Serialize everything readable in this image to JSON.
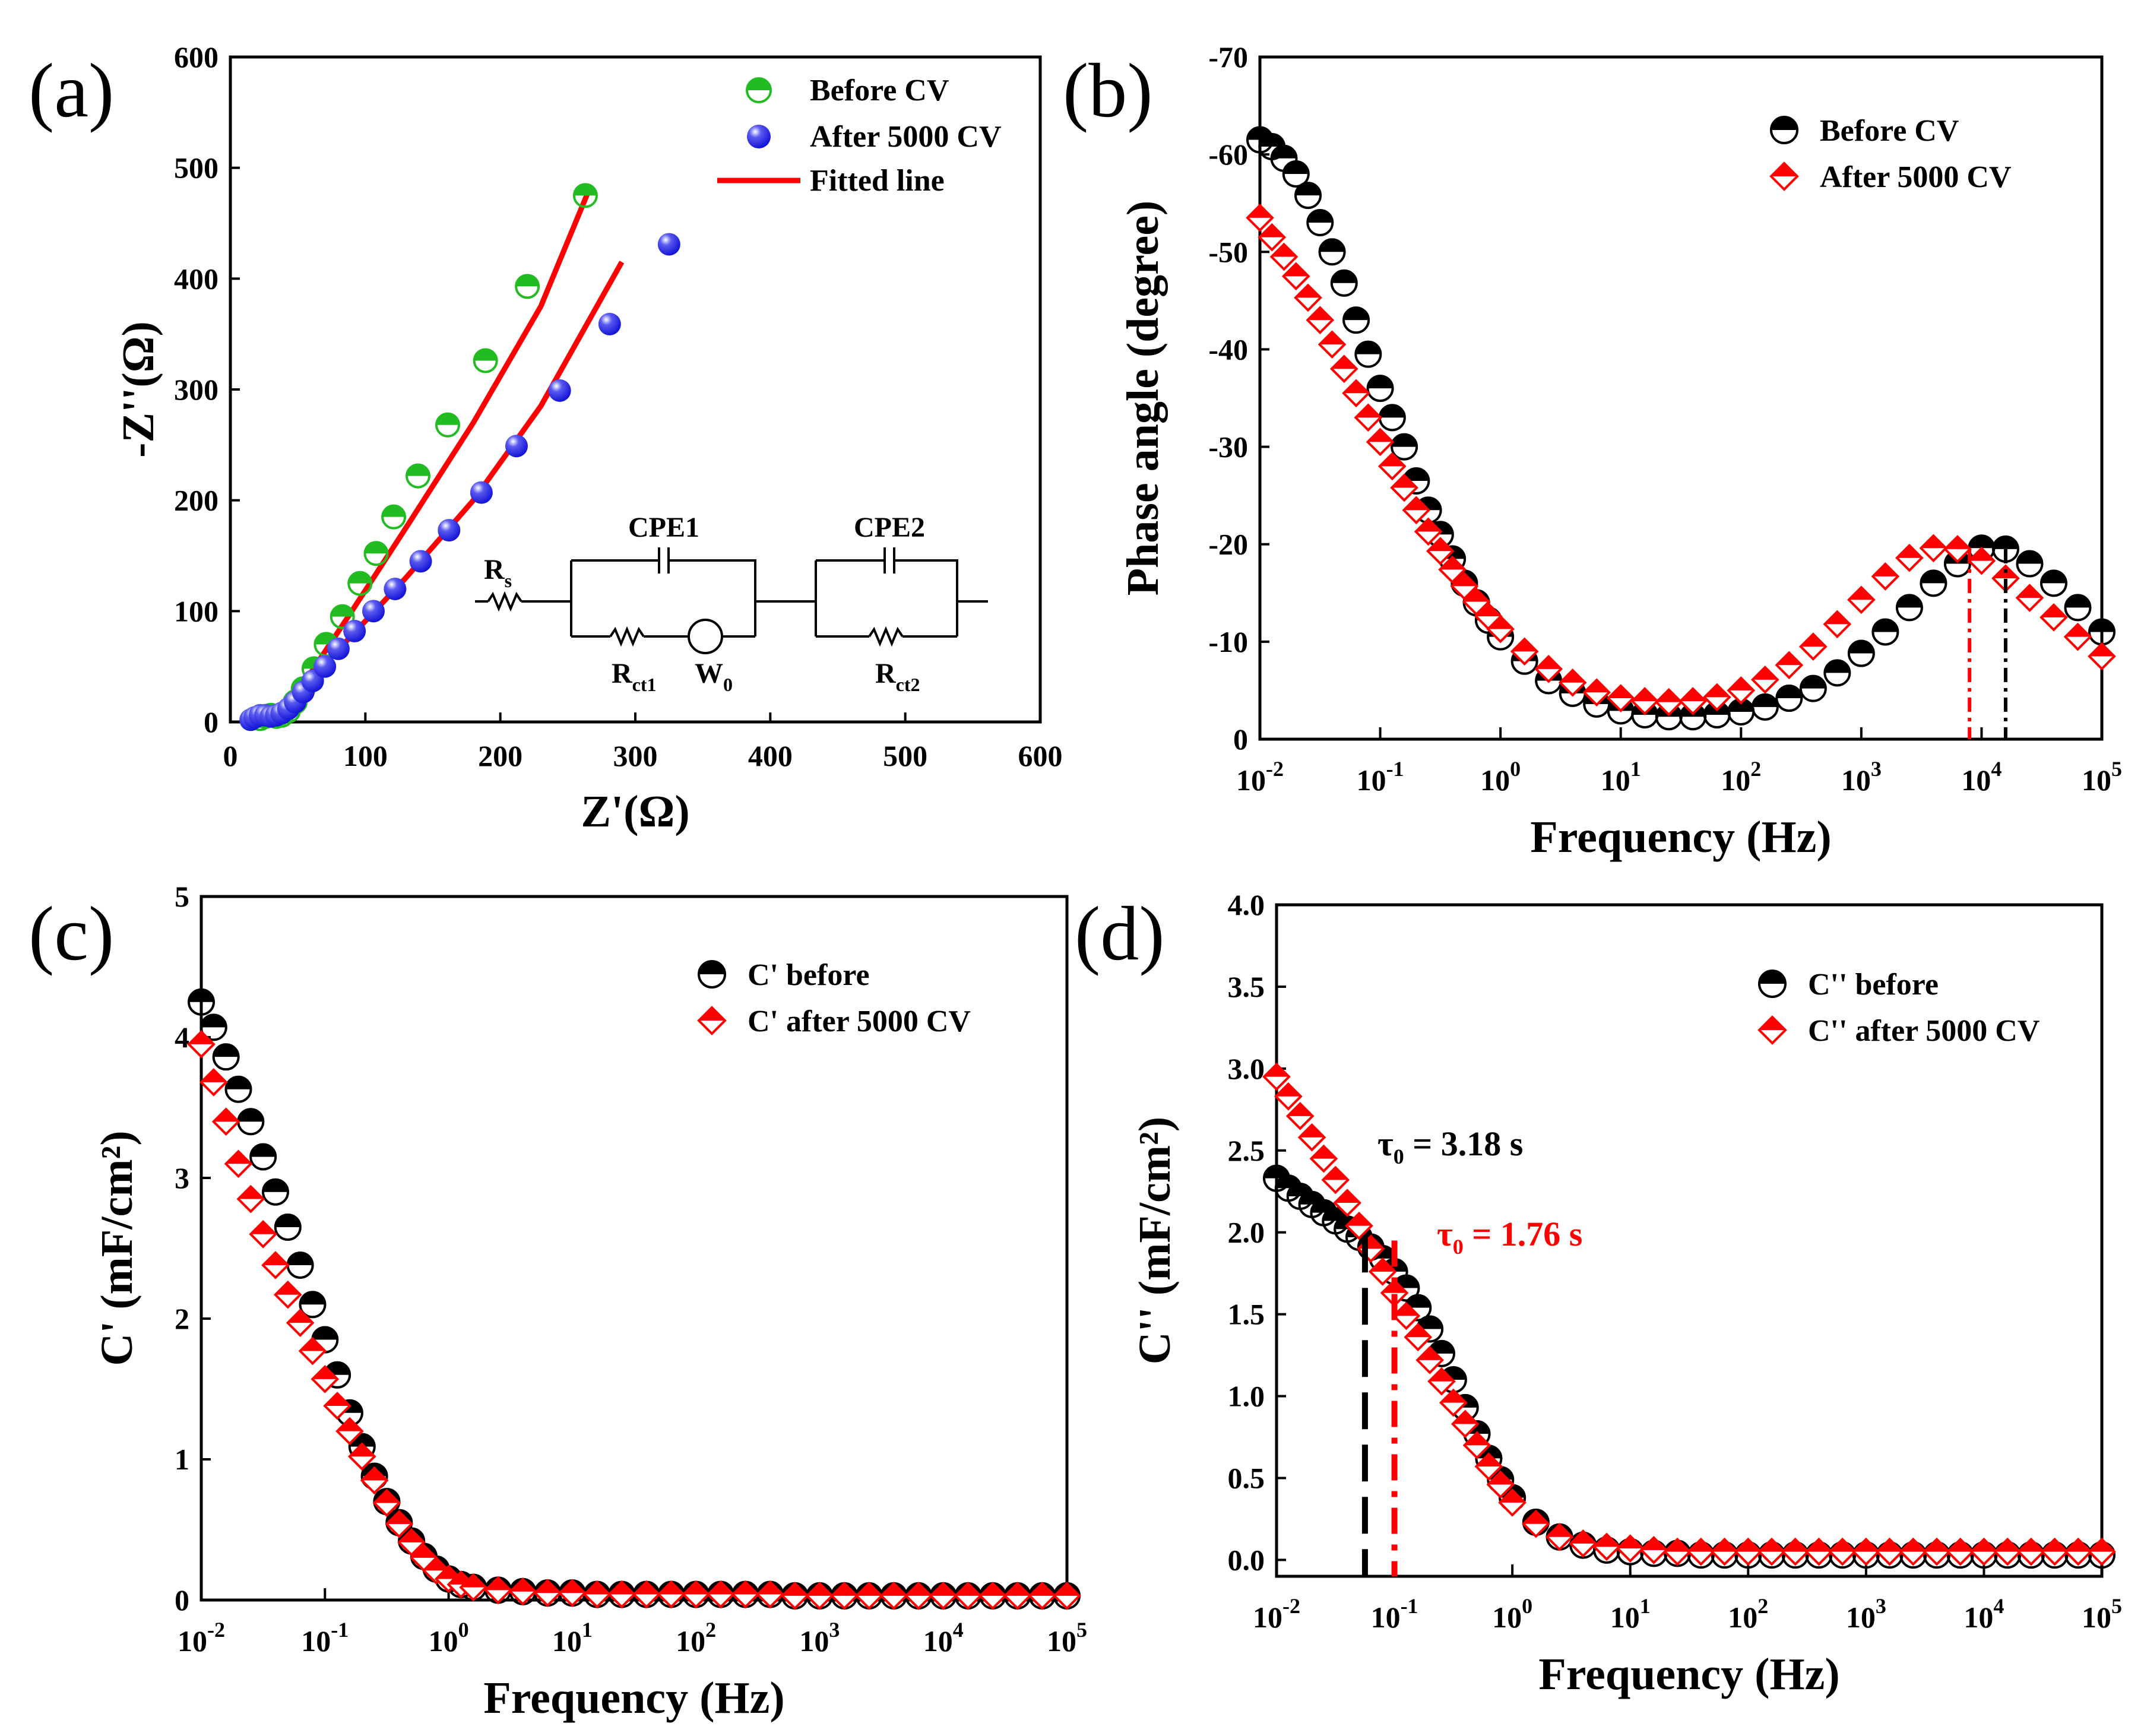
{
  "colors": {
    "green": "#22bb22",
    "blue": "#1515d8",
    "red": "#ff0000",
    "black": "#000000"
  },
  "chart_data": [
    {
      "id": "a",
      "panel_label": "(a)",
      "type": "scatter",
      "xlabel": "Z'(Ω)",
      "ylabel": "-Z''(Ω)",
      "xlim": [
        0,
        600
      ],
      "ylim": [
        0,
        600
      ],
      "xticks": [
        0,
        100,
        200,
        300,
        400,
        500,
        600
      ],
      "yticks": [
        0,
        100,
        200,
        300,
        400,
        500,
        600
      ],
      "series": [
        {
          "name": "Before CV",
          "marker": "half-circle",
          "color": "#22bb22",
          "x": [
            22,
            26,
            30,
            34,
            38,
            43,
            48,
            54,
            62,
            71,
            83,
            96,
            108,
            121,
            139,
            161,
            189,
            220,
            263
          ],
          "y": [
            3,
            5,
            6,
            5,
            6,
            10,
            18,
            30,
            48,
            70,
            95,
            125,
            152,
            185,
            222,
            268,
            326,
            393,
            475
          ]
        },
        {
          "name": "After 5000 CV",
          "marker": "sphere",
          "color": "#1515d8",
          "x": [
            15,
            18,
            22,
            26,
            30,
            34,
            38,
            43,
            48,
            54,
            61,
            70,
            80,
            92,
            106,
            122,
            141,
            162,
            186,
            212,
            244,
            281,
            325
          ],
          "y": [
            2,
            4,
            6,
            6,
            5,
            6,
            8,
            12,
            18,
            27,
            37,
            50,
            66,
            82,
            100,
            120,
            145,
            173,
            207,
            249,
            299,
            359,
            431
          ]
        },
        {
          "name": "Fitted line",
          "marker": "line",
          "color": "#ff0000",
          "x": [
            18,
            30,
            40,
            60,
            90,
            130,
            180,
            230,
            265
          ],
          "y": [
            3,
            3,
            12,
            45,
            100,
            175,
            270,
            375,
            478
          ]
        },
        {
          "name": "",
          "marker": "line",
          "color": "#ff0000",
          "x": [
            18,
            30,
            40,
            60,
            90,
            130,
            180,
            230,
            290
          ],
          "y": [
            2,
            2,
            12,
            40,
            78,
            130,
            200,
            285,
            415
          ]
        }
      ],
      "circuit": {
        "rs": "R",
        "rs_sub": "s",
        "cpe1": "CPE1",
        "cpe2": "CPE2",
        "rct1": "R",
        "rct1_sub": "ct1",
        "w": "W",
        "w_sub": "0",
        "rct2": "R",
        "rct2_sub": "ct2"
      }
    },
    {
      "id": "b",
      "panel_label": "(b)",
      "type": "scatter",
      "xlabel": "Frequency (Hz)",
      "ylabel": "Phase angle (degree)",
      "xscale": "log",
      "xlim_exp": [
        -2,
        5
      ],
      "ylim": [
        0,
        -70
      ],
      "yticks": [
        0,
        -10,
        -20,
        -30,
        -40,
        -50,
        -60,
        -70
      ],
      "series": [
        {
          "name": "Before CV",
          "marker": "half-circle",
          "color": "#000000",
          "logf": [
            -2,
            -1.9,
            -1.8,
            -1.7,
            -1.6,
            -1.5,
            -1.4,
            -1.3,
            -1.2,
            -1.1,
            -1,
            -0.9,
            -0.8,
            -0.7,
            -0.6,
            -0.5,
            -0.4,
            -0.3,
            -0.2,
            -0.1,
            0,
            0.2,
            0.4,
            0.6,
            0.8,
            1,
            1.2,
            1.4,
            1.6,
            1.8,
            2,
            2.2,
            2.4,
            2.6,
            2.8,
            3,
            3.2,
            3.4,
            3.6,
            3.8,
            4,
            4.2,
            4.4,
            4.6,
            4.8,
            5
          ],
          "y": [
            -61.5,
            -60.8,
            -59.6,
            -58,
            -55.8,
            -53,
            -50,
            -46.8,
            -43,
            -39.5,
            -36,
            -33,
            -30,
            -26.5,
            -23.5,
            -21,
            -18.5,
            -16,
            -14,
            -12.2,
            -10.5,
            -8,
            -6,
            -4.7,
            -3.6,
            -2.9,
            -2.5,
            -2.3,
            -2.3,
            -2.5,
            -2.8,
            -3.3,
            -4.2,
            -5.2,
            -6.8,
            -8.8,
            -11,
            -13.5,
            -16,
            -18,
            -19.6,
            -19.5,
            -18,
            -16,
            -13.5,
            -11
          ]
        },
        {
          "name": "After 5000 CV",
          "marker": "diamond",
          "color": "#ff0000",
          "logf": [
            -2,
            -1.9,
            -1.8,
            -1.7,
            -1.6,
            -1.5,
            -1.4,
            -1.3,
            -1.2,
            -1.1,
            -1,
            -0.9,
            -0.8,
            -0.7,
            -0.6,
            -0.5,
            -0.4,
            -0.3,
            -0.2,
            -0.1,
            0,
            0.2,
            0.4,
            0.6,
            0.8,
            1,
            1.2,
            1.4,
            1.6,
            1.8,
            2,
            2.2,
            2.4,
            2.6,
            2.8,
            3,
            3.2,
            3.4,
            3.6,
            3.8,
            4,
            4.2,
            4.4,
            4.6,
            4.8,
            5
          ],
          "y": [
            -53.5,
            -51.5,
            -49.5,
            -47.5,
            -45.3,
            -43,
            -40.5,
            -38,
            -35.5,
            -33,
            -30.5,
            -28,
            -25.8,
            -23.5,
            -21.3,
            -19.3,
            -17.4,
            -15.7,
            -14.1,
            -12.6,
            -11.3,
            -9,
            -7.2,
            -5.8,
            -4.8,
            -4.2,
            -3.9,
            -3.8,
            -3.9,
            -4.3,
            -5,
            -6.1,
            -7.6,
            -9.5,
            -11.8,
            -14.3,
            -16.7,
            -18.6,
            -19.6,
            -19.5,
            -18.3,
            -16.5,
            -14.5,
            -12.5,
            -10.5,
            -8.5
          ]
        }
      ],
      "peak_lines": [
        {
          "color": "#ff0000",
          "logf": 3.9,
          "y_top": -19.5
        },
        {
          "color": "#000000",
          "logf": 4.2,
          "y_top": -19.5
        }
      ]
    },
    {
      "id": "c",
      "panel_label": "(c)",
      "type": "scatter",
      "xlabel": "Frequency (Hz)",
      "ylabel": "C' (mF/cm²)",
      "xscale": "log",
      "xlim_exp": [
        -2,
        5
      ],
      "ylim": [
        0,
        5
      ],
      "yticks": [
        0,
        1,
        2,
        3,
        4,
        5
      ],
      "series": [
        {
          "name": "C' before",
          "marker": "half-circle",
          "color": "#000000",
          "logf": [
            -2,
            -1.9,
            -1.8,
            -1.7,
            -1.6,
            -1.5,
            -1.4,
            -1.3,
            -1.2,
            -1.1,
            -1,
            -0.9,
            -0.8,
            -0.7,
            -0.6,
            -0.5,
            -0.4,
            -0.3,
            -0.2,
            -0.1,
            0,
            0.1,
            0.2,
            0.4,
            0.6,
            0.8,
            1,
            1.2,
            1.4,
            1.6,
            1.8,
            2,
            2.2,
            2.4,
            2.6,
            2.8,
            3,
            3.2,
            3.4,
            3.6,
            3.8,
            4,
            4.2,
            4.4,
            4.6,
            4.8,
            5
          ],
          "y": [
            4.25,
            4.07,
            3.86,
            3.63,
            3.4,
            3.15,
            2.9,
            2.65,
            2.38,
            2.1,
            1.85,
            1.6,
            1.33,
            1.09,
            0.88,
            0.7,
            0.55,
            0.42,
            0.31,
            0.22,
            0.15,
            0.11,
            0.09,
            0.07,
            0.06,
            0.05,
            0.05,
            0.04,
            0.04,
            0.04,
            0.04,
            0.04,
            0.04,
            0.04,
            0.04,
            0.03,
            0.03,
            0.03,
            0.03,
            0.03,
            0.03,
            0.03,
            0.03,
            0.03,
            0.03,
            0.03,
            0.03
          ]
        },
        {
          "name": "C' after 5000 CV",
          "marker": "diamond",
          "color": "#ff0000",
          "logf": [
            -2,
            -1.9,
            -1.8,
            -1.7,
            -1.6,
            -1.5,
            -1.4,
            -1.3,
            -1.2,
            -1.1,
            -1,
            -0.9,
            -0.8,
            -0.7,
            -0.6,
            -0.5,
            -0.4,
            -0.3,
            -0.2,
            -0.1,
            0,
            0.1,
            0.2,
            0.4,
            0.6,
            0.8,
            1,
            1.2,
            1.4,
            1.6,
            1.8,
            2,
            2.2,
            2.4,
            2.6,
            2.8,
            3,
            3.2,
            3.4,
            3.6,
            3.8,
            4,
            4.2,
            4.4,
            4.6,
            4.8,
            5
          ],
          "y": [
            3.95,
            3.68,
            3.4,
            3.1,
            2.85,
            2.6,
            2.38,
            2.17,
            1.97,
            1.77,
            1.57,
            1.38,
            1.2,
            1.02,
            0.85,
            0.69,
            0.54,
            0.41,
            0.3,
            0.21,
            0.15,
            0.11,
            0.09,
            0.07,
            0.06,
            0.05,
            0.05,
            0.04,
            0.04,
            0.04,
            0.04,
            0.04,
            0.04,
            0.04,
            0.04,
            0.03,
            0.03,
            0.03,
            0.03,
            0.03,
            0.03,
            0.03,
            0.03,
            0.03,
            0.03,
            0.03,
            0.03
          ]
        }
      ]
    },
    {
      "id": "d",
      "panel_label": "(d)",
      "type": "scatter",
      "xlabel": "Frequency (Hz)",
      "ylabel": "C'' (mF/cm²)",
      "xscale": "log",
      "xlim_exp": [
        -2,
        5
      ],
      "ylim": [
        -0.1,
        4
      ],
      "yticks": [
        0,
        0.5,
        1,
        1.5,
        2,
        2.5,
        3,
        3.5,
        4
      ],
      "ytick_labels": [
        "0.0",
        "0.5",
        "1.0",
        "1.5",
        "2.0",
        "2.5",
        "3.0",
        "3.5",
        "4.0"
      ],
      "series": [
        {
          "name": "C'' before",
          "marker": "half-circle",
          "color": "#000000",
          "logf": [
            -2,
            -1.9,
            -1.8,
            -1.7,
            -1.6,
            -1.5,
            -1.4,
            -1.3,
            -1.2,
            -1.1,
            -1,
            -0.9,
            -0.8,
            -0.7,
            -0.6,
            -0.5,
            -0.4,
            -0.3,
            -0.2,
            -0.1,
            0,
            0.2,
            0.4,
            0.6,
            0.8,
            1,
            1.2,
            1.4,
            1.6,
            1.8,
            2,
            2.2,
            2.4,
            2.6,
            2.8,
            3,
            3.2,
            3.4,
            3.6,
            3.8,
            4,
            4.2,
            4.4,
            4.6,
            4.8,
            5
          ],
          "y": [
            2.33,
            2.27,
            2.22,
            2.17,
            2.12,
            2.07,
            2.02,
            1.97,
            1.91,
            1.84,
            1.76,
            1.66,
            1.54,
            1.41,
            1.26,
            1.1,
            0.93,
            0.77,
            0.62,
            0.49,
            0.38,
            0.23,
            0.14,
            0.09,
            0.06,
            0.05,
            0.04,
            0.04,
            0.03,
            0.03,
            0.03,
            0.03,
            0.03,
            0.03,
            0.03,
            0.03,
            0.03,
            0.03,
            0.03,
            0.03,
            0.03,
            0.03,
            0.03,
            0.03,
            0.03,
            0.03
          ]
        },
        {
          "name": "C'' after 5000 CV",
          "marker": "diamond",
          "color": "#ff0000",
          "logf": [
            -2,
            -1.9,
            -1.8,
            -1.7,
            -1.6,
            -1.5,
            -1.4,
            -1.3,
            -1.2,
            -1.1,
            -1,
            -0.9,
            -0.8,
            -0.7,
            -0.6,
            -0.5,
            -0.4,
            -0.3,
            -0.2,
            -0.1,
            0,
            0.2,
            0.4,
            0.6,
            0.8,
            1,
            1.2,
            1.4,
            1.6,
            1.8,
            2,
            2.2,
            2.4,
            2.6,
            2.8,
            3,
            3.2,
            3.4,
            3.6,
            3.8,
            4,
            4.2,
            4.4,
            4.6,
            4.8,
            5
          ],
          "y": [
            2.95,
            2.83,
            2.71,
            2.58,
            2.45,
            2.32,
            2.18,
            2.04,
            1.9,
            1.76,
            1.63,
            1.49,
            1.36,
            1.22,
            1.09,
            0.96,
            0.83,
            0.7,
            0.57,
            0.46,
            0.35,
            0.22,
            0.14,
            0.1,
            0.08,
            0.07,
            0.06,
            0.05,
            0.05,
            0.05,
            0.05,
            0.05,
            0.05,
            0.05,
            0.05,
            0.05,
            0.05,
            0.05,
            0.05,
            0.05,
            0.05,
            0.05,
            0.05,
            0.05,
            0.05,
            0.05
          ]
        }
      ],
      "tau_lines": [
        {
          "color": "#000000",
          "logf": -1.25,
          "y_top": 1.98,
          "dash": "dash"
        },
        {
          "color": "#ff0000",
          "logf": -1.0,
          "y_top": 1.95,
          "dash": "dashdot"
        }
      ],
      "annotations": [
        {
          "tau": "τ",
          "sub": "0",
          "text": " = 3.18 s",
          "color": "#000000"
        },
        {
          "tau": "τ",
          "sub": "0",
          "text": " = 1.76 s",
          "color": "#ff0000"
        }
      ]
    }
  ]
}
